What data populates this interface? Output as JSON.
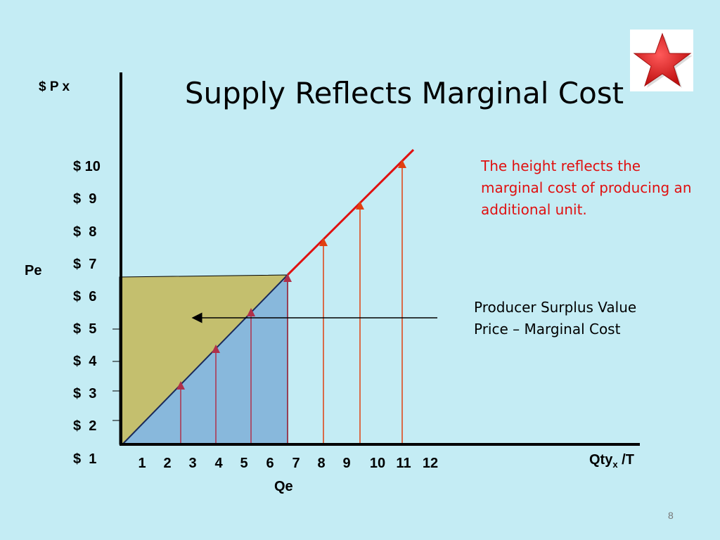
{
  "title": "Supply Reflects Marginal Cost",
  "y_axis_title": "$ P x",
  "x_axis_title": {
    "main": "Qty",
    "sub": "x",
    "suffix": " /T"
  },
  "y_ticks": [
    "$ 10",
    "$  9",
    "$  8",
    "$  7",
    "$  6",
    "$  5",
    "$  4",
    "$  3",
    "$  2",
    "$  1"
  ],
  "x_ticks": [
    "1",
    "2",
    "3",
    "4",
    "5",
    "6",
    "7",
    "8",
    "9",
    "10",
    "11",
    "12"
  ],
  "pe_label": "Pe",
  "qe_label": "Qe",
  "note_red": "The height reflects the marginal cost of producing an additional unit.",
  "note_black_line1": "Producer Surplus Value",
  "note_black_line2": "Price – Marginal Cost",
  "page_number": "8",
  "colors": {
    "background": "#c4ecf4",
    "surplus_fill": "#c4bf6e",
    "cost_fill": "#88b8dc",
    "supply_line": "#e01010",
    "arrow_red": "#e04010",
    "arrow_maroon": "#b0304a",
    "star": "#e02020"
  },
  "icons": {
    "decoration": "star-icon"
  }
}
